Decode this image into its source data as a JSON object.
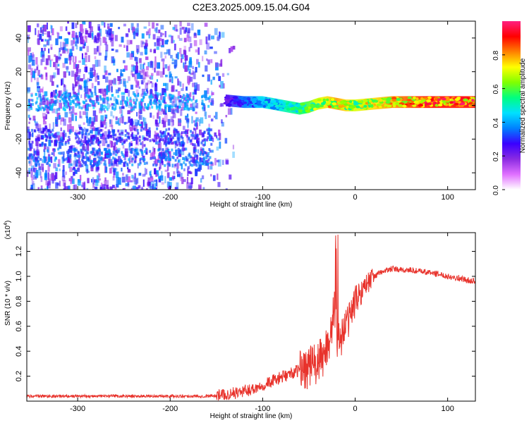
{
  "title": "C2E3.2025.009.15.04.G04",
  "colors": {
    "snr_line": "#e8322b",
    "spectrogram_scatter": "#6a1cf0",
    "colorbar_stops": [
      "#ffffff",
      "#e070ff",
      "#8a2be2",
      "#3a00ff",
      "#0080ff",
      "#00e0ff",
      "#00ff80",
      "#80ff00",
      "#ffff00",
      "#ff8000",
      "#ff0000",
      "#ff2080"
    ]
  },
  "chart_data": [
    {
      "type": "heatmap",
      "xlabel": "Height of straight line (km)",
      "ylabel": "Frequency (Hz)",
      "xlim": [
        -355,
        130
      ],
      "ylim": [
        -50,
        50
      ],
      "xticks": [
        -300,
        -200,
        -100,
        0,
        100
      ],
      "yticks": [
        -40,
        -20,
        0,
        20,
        40
      ],
      "colorbar": {
        "label": "Normalized spectral amplitude",
        "range": [
          0,
          1
        ],
        "ticks": [
          0.0,
          0.2,
          0.4,
          0.6,
          0.8
        ]
      },
      "description_of_ridge": {
        "x": [
          -140,
          -120,
          -100,
          -80,
          -60,
          -50,
          -40,
          -30,
          -20,
          -10,
          0,
          20,
          40,
          60,
          80,
          100,
          130
        ],
        "center_freq": [
          3,
          2,
          2,
          0,
          -2,
          -1,
          1,
          2,
          1,
          0,
          0,
          1,
          2,
          2,
          2,
          2,
          2
        ],
        "amplitude": [
          0.25,
          0.35,
          0.45,
          0.5,
          0.55,
          0.6,
          0.7,
          0.75,
          0.8,
          0.75,
          0.7,
          0.75,
          0.8,
          0.85,
          0.9,
          0.9,
          0.9
        ]
      }
    },
    {
      "type": "line",
      "xlabel": "Height of straight line (km)",
      "ylabel": "SNR (10 * v/v)",
      "y_multiplier": "(x10",
      "y_multiplier_exp": "4",
      "y_multiplier_close": ")",
      "xlim": [
        -355,
        130
      ],
      "ylim": [
        0.0,
        1.35
      ],
      "xticks": [
        -300,
        -200,
        -100,
        0,
        100
      ],
      "yticks": [
        0.2,
        0.4,
        0.6,
        0.8,
        1.0,
        1.2
      ],
      "series": [
        {
          "x": [
            -355,
            -300,
            -250,
            -200,
            -160,
            -140,
            -120,
            -110,
            -100,
            -90,
            -80,
            -70,
            -60,
            -50,
            -40,
            -35,
            -30,
            -25,
            -22,
            -20,
            -18,
            -15,
            -10,
            -5,
            0,
            10,
            20,
            30,
            40,
            50,
            60,
            70,
            80,
            90,
            100,
            110,
            120,
            130
          ],
          "y": [
            0.04,
            0.04,
            0.04,
            0.04,
            0.04,
            0.05,
            0.08,
            0.1,
            0.13,
            0.16,
            0.19,
            0.22,
            0.25,
            0.28,
            0.3,
            0.35,
            0.45,
            0.6,
            0.75,
            0.55,
            0.5,
            0.52,
            0.6,
            0.7,
            0.8,
            0.92,
            1.0,
            1.04,
            1.06,
            1.05,
            1.05,
            1.04,
            1.03,
            1.02,
            1.0,
            0.99,
            0.97,
            0.96
          ]
        }
      ]
    }
  ]
}
